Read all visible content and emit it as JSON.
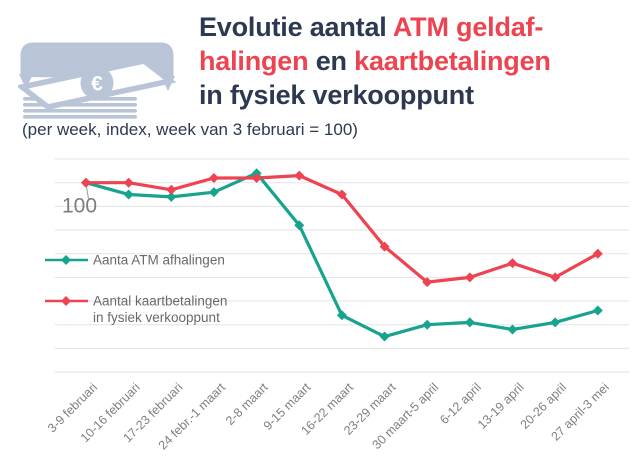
{
  "header": {
    "icon": "atm-cash-withdrawal-icon",
    "title_lines": [
      [
        {
          "text": "Evolutie aantal ",
          "color": "#2c3950"
        },
        {
          "text": "ATM geldaf-",
          "color": "#ee4351"
        }
      ],
      [
        {
          "text": "halingen",
          "color": "#ee4351"
        },
        {
          "text": " en ",
          "color": "#2c3950"
        },
        {
          "text": "kaartbetalingen",
          "color": "#ee4351"
        }
      ],
      [
        {
          "text": "in fysiek verkooppunt",
          "color": "#2c3950"
        }
      ]
    ],
    "subtitle": "(per week, index, week van 3 februari = 100)"
  },
  "chart_data": {
    "type": "line",
    "title": "Evolutie aantal ATM geldafhalingen en kaartbetalingen in fysiek verkooppunt",
    "subtitle": "(per week, index, week van 3 februari = 100)",
    "categories": [
      "3-9 februari",
      "10-16 februari",
      "17-23 februari",
      "24 febr.-1 maart",
      "2-8 maart",
      "9-15 maart",
      "16-22 maart",
      "23-29 maart",
      "30 maart-5 april",
      "6-12 april",
      "13-19 april",
      "20-26 april",
      "27 april-3 mei"
    ],
    "series": [
      {
        "name": "Aanta ATM afhalingen",
        "color": "#17a38e",
        "values": [
          100,
          95,
          94,
          96,
          104,
          82,
          44,
          35,
          40,
          41,
          38,
          41,
          46
        ]
      },
      {
        "name": "Aantal kaartbetalingen in fysiek verkooppunt",
        "color": "#ee4351",
        "values": [
          100,
          100,
          97,
          102,
          102,
          103,
          95,
          73,
          58,
          60,
          66,
          60,
          70
        ]
      }
    ],
    "ylim": [
      15,
      115
    ],
    "gridlines": [
      110,
      100,
      90,
      80,
      70,
      60,
      50,
      40,
      30,
      20
    ],
    "grid": true,
    "marker": "diamond",
    "annotation": {
      "text": "100",
      "series_index": 0,
      "point_index": 0
    },
    "legend_position": "left-middle",
    "legend": [
      {
        "lines": [
          "Aanta ATM afhalingen"
        ],
        "color": "#17a38e"
      },
      {
        "lines": [
          "Aantal kaartbetalingen",
          "in fysiek verkooppunt"
        ],
        "color": "#ee4351"
      }
    ],
    "colors": {
      "gridline": "#e3e3e3",
      "axis_label": "#7f7f7f",
      "legend_text": "#696969",
      "annotation_text": "#7c7c7c",
      "icon": "#b9c4d7"
    }
  }
}
